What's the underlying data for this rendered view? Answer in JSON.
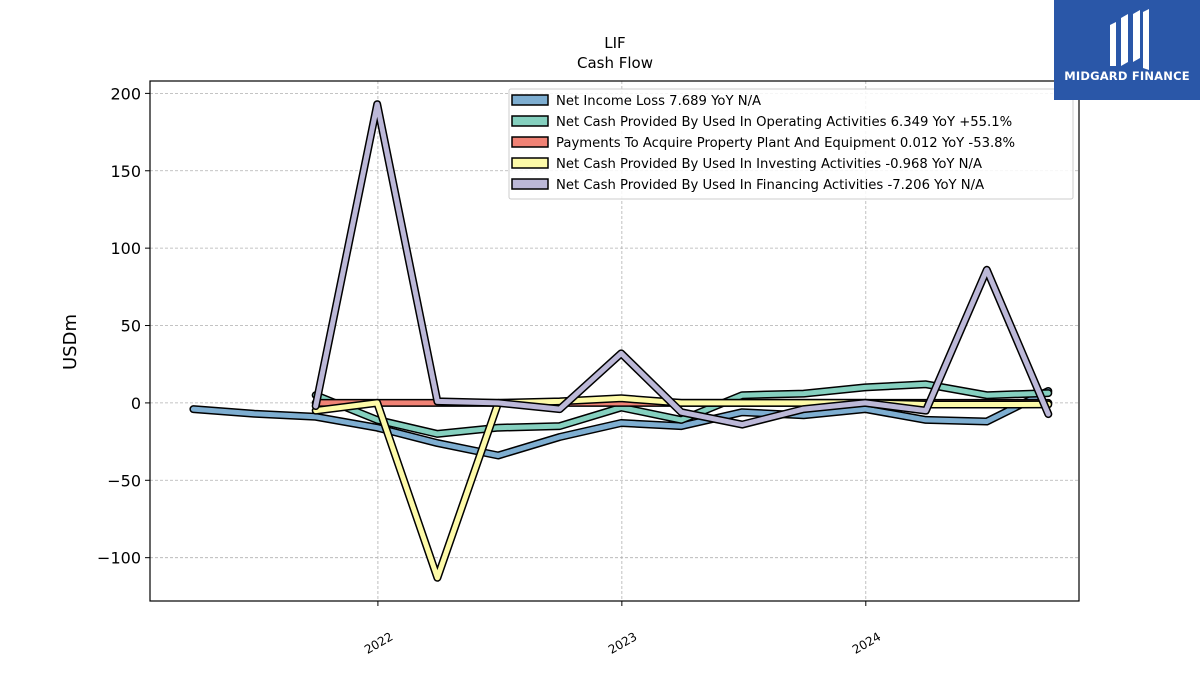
{
  "brand": {
    "name": "MIDGARD FINANCE",
    "bg_color": "#2a57a8"
  },
  "chart_data": {
    "type": "line",
    "title": "LIF",
    "subtitle": "Cash Flow",
    "xlabel": "",
    "ylabel": "USDm",
    "x_ticks": [
      {
        "label": "2022",
        "x": "2022-01-01"
      },
      {
        "label": "2023",
        "x": "2023-01-01"
      },
      {
        "label": "2024",
        "x": "2024-01-01"
      }
    ],
    "y_ticks": [
      {
        "label": "200",
        "value": 200
      },
      {
        "label": "150",
        "value": 150
      },
      {
        "label": "100",
        "value": 100
      },
      {
        "label": "50",
        "value": 50
      },
      {
        "label": "0",
        "value": 0
      },
      {
        "label": "−50",
        "value": -50
      },
      {
        "label": "−100",
        "value": -100
      }
    ],
    "xlim": [
      "2021-01-25",
      "2024-11-15"
    ],
    "ylim": [
      -128,
      208
    ],
    "grid": true,
    "legend_position": "top-right",
    "series": [
      {
        "name": "Net Income Loss  7.689 YoY N/A",
        "color": "#7eaed1",
        "points": [
          {
            "x": "2021-03-31",
            "y": -4
          },
          {
            "x": "2021-06-30",
            "y": -7
          },
          {
            "x": "2021-09-30",
            "y": -9
          },
          {
            "x": "2021-12-31",
            "y": -16
          },
          {
            "x": "2022-03-31",
            "y": -26
          },
          {
            "x": "2022-06-30",
            "y": -34
          },
          {
            "x": "2022-09-30",
            "y": -22
          },
          {
            "x": "2022-12-31",
            "y": -13
          },
          {
            "x": "2023-03-31",
            "y": -15
          },
          {
            "x": "2023-06-30",
            "y": -6
          },
          {
            "x": "2023-09-30",
            "y": -8
          },
          {
            "x": "2023-12-31",
            "y": -4
          },
          {
            "x": "2024-03-31",
            "y": -11
          },
          {
            "x": "2024-06-30",
            "y": -12
          },
          {
            "x": "2024-09-30",
            "y": 7.689
          }
        ]
      },
      {
        "name": "Net Cash Provided By Used In Operating Activities  6.349 YoY +55.1%",
        "color": "#85d0bf",
        "points": [
          {
            "x": "2021-09-30",
            "y": 5
          },
          {
            "x": "2021-12-31",
            "y": -11
          },
          {
            "x": "2022-03-31",
            "y": -20
          },
          {
            "x": "2022-06-30",
            "y": -16
          },
          {
            "x": "2022-09-30",
            "y": -15
          },
          {
            "x": "2022-12-31",
            "y": -3
          },
          {
            "x": "2023-03-31",
            "y": -11
          },
          {
            "x": "2023-06-30",
            "y": 5
          },
          {
            "x": "2023-09-30",
            "y": 6
          },
          {
            "x": "2023-12-31",
            "y": 10
          },
          {
            "x": "2024-03-31",
            "y": 12
          },
          {
            "x": "2024-06-30",
            "y": 5
          },
          {
            "x": "2024-09-30",
            "y": 6.349
          }
        ]
      },
      {
        "name": "Payments To Acquire Property Plant And Equipment  0.012 YoY -53.8%",
        "color": "#f08275",
        "points": [
          {
            "x": "2021-09-30",
            "y": 0
          },
          {
            "x": "2021-12-31",
            "y": 0
          },
          {
            "x": "2022-03-31",
            "y": 0
          },
          {
            "x": "2022-06-30",
            "y": 0
          },
          {
            "x": "2022-09-30",
            "y": 0
          },
          {
            "x": "2022-12-31",
            "y": 0
          },
          {
            "x": "2023-03-31",
            "y": 0
          },
          {
            "x": "2023-06-30",
            "y": 0
          },
          {
            "x": "2023-09-30",
            "y": 0
          },
          {
            "x": "2023-12-31",
            "y": 0
          },
          {
            "x": "2024-03-31",
            "y": 0
          },
          {
            "x": "2024-06-30",
            "y": 0
          },
          {
            "x": "2024-09-30",
            "y": 0.012
          }
        ]
      },
      {
        "name": "Net Cash Provided By Used In Investing Activities  -0.968 YoY N/A",
        "color": "#fdfaa8",
        "points": [
          {
            "x": "2021-09-30",
            "y": -5
          },
          {
            "x": "2021-12-31",
            "y": 0
          },
          {
            "x": "2022-03-31",
            "y": -113
          },
          {
            "x": "2022-06-30",
            "y": 0
          },
          {
            "x": "2022-09-30",
            "y": 1
          },
          {
            "x": "2022-12-31",
            "y": 3
          },
          {
            "x": "2023-03-31",
            "y": 0
          },
          {
            "x": "2023-06-30",
            "y": 0
          },
          {
            "x": "2023-09-30",
            "y": 0
          },
          {
            "x": "2023-12-31",
            "y": 0
          },
          {
            "x": "2024-03-31",
            "y": -1
          },
          {
            "x": "2024-06-30",
            "y": -1
          },
          {
            "x": "2024-09-30",
            "y": -0.968
          }
        ]
      },
      {
        "name": "Net Cash Provided By Used In Financing Activities  -7.206 YoY N/A",
        "color": "#bcb8d8",
        "points": [
          {
            "x": "2021-09-30",
            "y": -2
          },
          {
            "x": "2021-12-31",
            "y": 193
          },
          {
            "x": "2022-03-31",
            "y": 1
          },
          {
            "x": "2022-06-30",
            "y": 0
          },
          {
            "x": "2022-09-30",
            "y": -4
          },
          {
            "x": "2022-12-31",
            "y": 32
          },
          {
            "x": "2023-03-31",
            "y": -6
          },
          {
            "x": "2023-06-30",
            "y": -14
          },
          {
            "x": "2023-09-30",
            "y": -4
          },
          {
            "x": "2023-12-31",
            "y": 0
          },
          {
            "x": "2024-03-31",
            "y": -5
          },
          {
            "x": "2024-06-30",
            "y": 86
          },
          {
            "x": "2024-09-30",
            "y": -7.206
          }
        ]
      }
    ]
  }
}
